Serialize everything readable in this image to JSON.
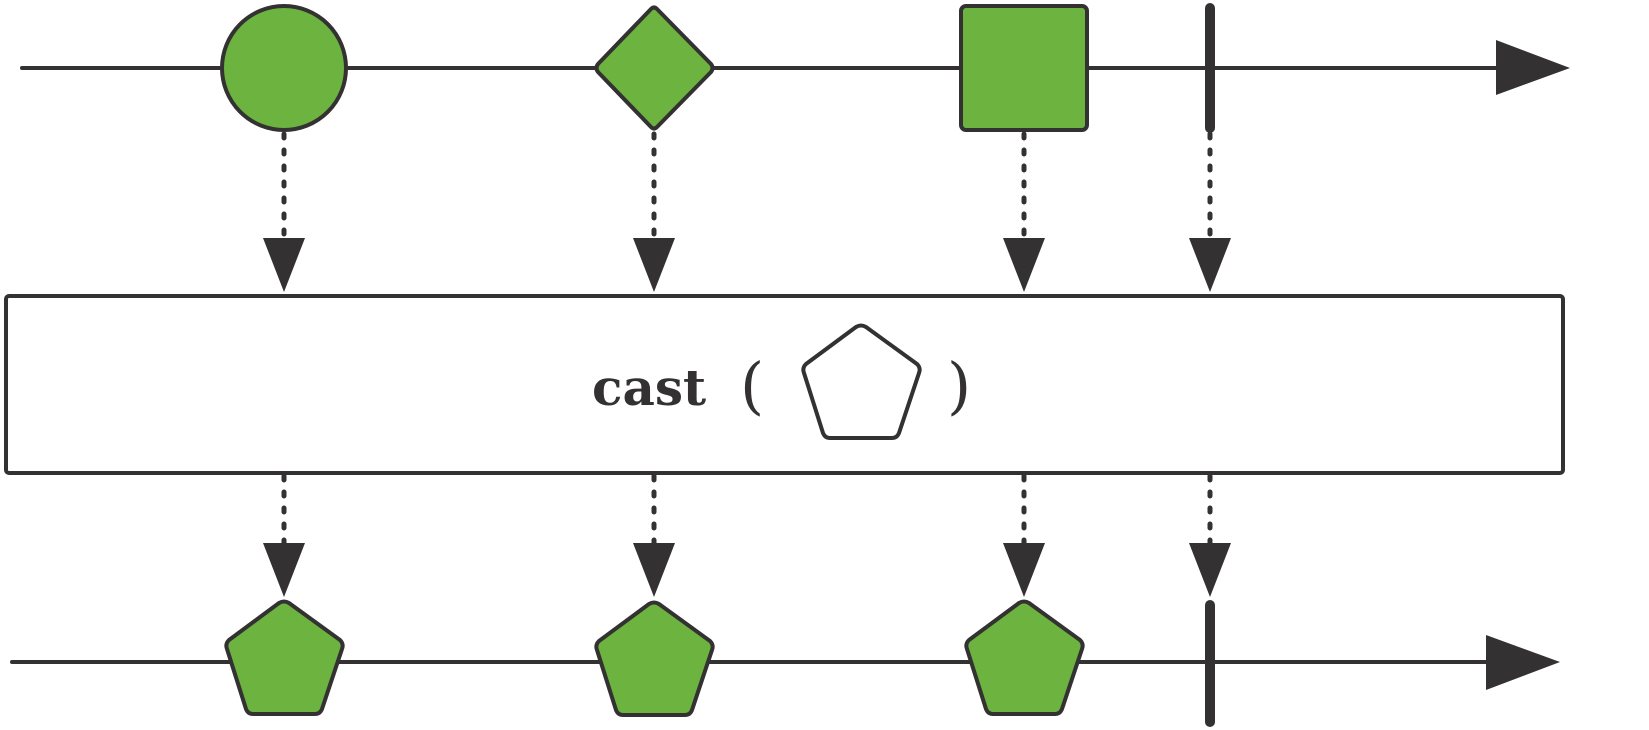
{
  "operator": {
    "name": "cast",
    "open_paren": "(",
    "close_paren": ")",
    "argument_shape": "pentagon"
  },
  "input_timeline": {
    "items": [
      {
        "shape": "circle",
        "color": "#6cb33f"
      },
      {
        "shape": "diamond",
        "color": "#6cb33f"
      },
      {
        "shape": "square",
        "color": "#6cb33f"
      },
      {
        "shape": "completion-bar"
      }
    ]
  },
  "output_timeline": {
    "items": [
      {
        "shape": "pentagon",
        "color": "#6cb33f"
      },
      {
        "shape": "pentagon",
        "color": "#6cb33f"
      },
      {
        "shape": "pentagon",
        "color": "#6cb33f"
      },
      {
        "shape": "completion-bar"
      }
    ]
  },
  "colors": {
    "stroke": "#333131",
    "item_fill": "#6cb33f",
    "box_fill": "#ffffff"
  }
}
